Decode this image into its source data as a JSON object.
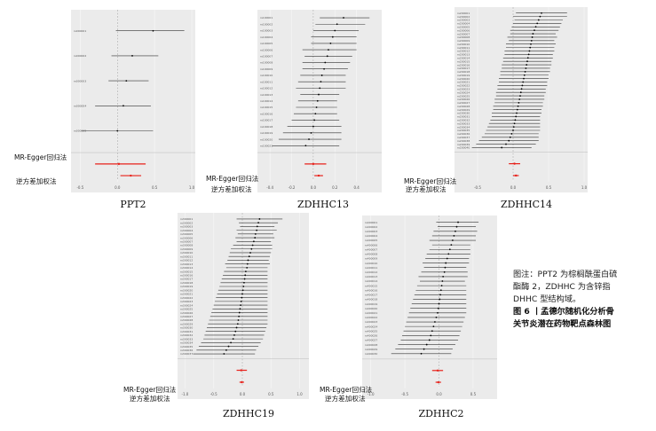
{
  "panels": [
    {
      "id": "ppt2",
      "title": "PPT2",
      "egger_label": "MR-Egger回归法",
      "ivw_label": "逆方差加权法",
      "snps": [
        "rs000001",
        "rs000002",
        "rs000003",
        "rs000004",
        "rs000005"
      ],
      "estimates": [
        0.48,
        0.2,
        0.12,
        0.08,
        0.0
      ],
      "ci_low": [
        -0.02,
        -0.08,
        -0.12,
        -0.3,
        -0.48
      ],
      "ci_high": [
        0.9,
        0.55,
        0.42,
        0.45,
        0.48
      ],
      "egger": {
        "est": 0.02,
        "lo": -0.3,
        "hi": 0.38
      },
      "ivw": {
        "est": 0.18,
        "lo": 0.04,
        "hi": 0.32
      },
      "x_ticks": [
        "-0.5",
        "0.0",
        "0.5",
        "1.0"
      ],
      "xlim": [
        -0.6,
        1.0
      ]
    },
    {
      "id": "zdhhc13",
      "title": "ZDHHC13",
      "egger_label": "MR-Egger回归法",
      "ivw_label": "逆方差加权法",
      "snps": [
        "rs100001",
        "rs100002",
        "rs100003",
        "rs100004",
        "rs100005",
        "rs100006",
        "rs100007",
        "rs100008",
        "rs100009",
        "rs100010",
        "rs100011",
        "rs100012",
        "rs100013",
        "rs100014",
        "rs100015",
        "rs100016",
        "rs100017",
        "rs100018",
        "rs100019",
        "rs100020",
        "rs100021"
      ],
      "estimates": [
        0.28,
        0.22,
        0.2,
        0.18,
        0.16,
        0.14,
        0.13,
        0.11,
        0.1,
        0.08,
        0.07,
        0.06,
        0.05,
        0.04,
        0.03,
        0.02,
        0.01,
        0.0,
        -0.02,
        -0.04,
        -0.07
      ],
      "ci_low": [
        0.06,
        0.02,
        0.0,
        -0.02,
        -0.02,
        -0.1,
        -0.08,
        -0.1,
        -0.1,
        -0.12,
        -0.14,
        -0.16,
        -0.12,
        -0.14,
        -0.16,
        -0.18,
        -0.2,
        -0.24,
        -0.28,
        -0.32,
        -0.38
      ],
      "ci_high": [
        0.52,
        0.48,
        0.42,
        0.4,
        0.4,
        0.4,
        0.36,
        0.34,
        0.32,
        0.3,
        0.3,
        0.3,
        0.24,
        0.22,
        0.22,
        0.22,
        0.24,
        0.26,
        0.26,
        0.26,
        0.24
      ],
      "egger": {
        "est": 0.0,
        "lo": -0.08,
        "hi": 0.12
      },
      "ivw": {
        "est": 0.05,
        "lo": 0.01,
        "hi": 0.09
      },
      "x_ticks": [
        "-0.4",
        "-0.2",
        "0.0",
        "0.2",
        "0.4"
      ],
      "xlim": [
        -0.5,
        0.6
      ]
    },
    {
      "id": "zdhhc14",
      "title": "ZDHHC14",
      "egger_label": "MR-Egger回归法",
      "ivw_label": "逆方差加权法",
      "snps": [
        "rs200001",
        "rs200002",
        "rs200003",
        "rs200004",
        "rs200005",
        "rs200006",
        "rs200007",
        "rs200008",
        "rs200009",
        "rs200010",
        "rs200011",
        "rs200012",
        "rs200013",
        "rs200014",
        "rs200015",
        "rs200016",
        "rs200017",
        "rs200018",
        "rs200019",
        "rs200020",
        "rs200021",
        "rs200022",
        "rs200023",
        "rs200024",
        "rs200025",
        "rs200026",
        "rs200027",
        "rs200028",
        "rs200029",
        "rs200030",
        "rs200031",
        "rs200032",
        "rs200033",
        "rs200034",
        "rs200035",
        "rs200036",
        "rs200037",
        "rs200038",
        "rs200039",
        "rs200040"
      ],
      "estimates": [
        0.4,
        0.38,
        0.36,
        0.34,
        0.32,
        0.3,
        0.28,
        0.27,
        0.26,
        0.25,
        0.24,
        0.23,
        0.22,
        0.21,
        0.2,
        0.19,
        0.18,
        0.17,
        0.16,
        0.15,
        0.14,
        0.13,
        0.12,
        0.11,
        0.1,
        0.09,
        0.08,
        0.07,
        0.06,
        0.05,
        0.04,
        0.03,
        0.02,
        0.01,
        0.0,
        -0.02,
        -0.04,
        -0.06,
        -0.1,
        -0.16
      ],
      "ci_low": [
        0.04,
        0.0,
        0.02,
        0.0,
        -0.02,
        -0.04,
        -0.04,
        -0.08,
        -0.06,
        -0.1,
        -0.1,
        -0.12,
        -0.12,
        -0.14,
        -0.14,
        -0.16,
        -0.16,
        -0.18,
        -0.18,
        -0.2,
        -0.2,
        -0.22,
        -0.22,
        -0.24,
        -0.24,
        -0.26,
        -0.26,
        -0.28,
        -0.28,
        -0.3,
        -0.3,
        -0.32,
        -0.34,
        -0.36,
        -0.38,
        -0.4,
        -0.44,
        -0.48,
        -0.52,
        -0.58
      ],
      "ci_high": [
        0.76,
        0.76,
        0.7,
        0.68,
        0.66,
        0.64,
        0.6,
        0.62,
        0.58,
        0.6,
        0.58,
        0.58,
        0.56,
        0.56,
        0.54,
        0.54,
        0.52,
        0.52,
        0.5,
        0.5,
        0.48,
        0.48,
        0.46,
        0.46,
        0.44,
        0.44,
        0.42,
        0.42,
        0.4,
        0.4,
        0.38,
        0.38,
        0.38,
        0.38,
        0.38,
        0.36,
        0.36,
        0.36,
        0.32,
        0.26
      ],
      "egger": {
        "est": 0.02,
        "lo": -0.06,
        "hi": 0.1
      },
      "ivw": {
        "est": 0.04,
        "lo": 0.0,
        "hi": 0.08
      },
      "x_ticks": [
        "-0.5",
        "0.0",
        "0.5",
        "1.0"
      ],
      "xlim": [
        -0.8,
        1.0
      ]
    },
    {
      "id": "zdhhc19",
      "title": "ZDHHC19",
      "egger_label": "MR-Egger回归法",
      "ivw_label": "逆方差加权法",
      "snps": [
        "rs300001",
        "rs300002",
        "rs300003",
        "rs300004",
        "rs300005",
        "rs300006",
        "rs300007",
        "rs300008",
        "rs300009",
        "rs300010",
        "rs300011",
        "rs300012",
        "rs300013",
        "rs300014",
        "rs300015",
        "rs300016",
        "rs300017",
        "rs300018",
        "rs300019",
        "rs300020",
        "rs300021",
        "rs300022",
        "rs300023",
        "rs300024",
        "rs300025",
        "rs300026",
        "rs300027",
        "rs300028",
        "rs300029",
        "rs300030",
        "rs300031",
        "rs300032",
        "rs300033",
        "rs300034",
        "rs300035",
        "rs300036",
        "rs300037"
      ],
      "estimates": [
        0.3,
        0.28,
        0.26,
        0.25,
        0.23,
        0.22,
        0.2,
        0.18,
        0.16,
        0.14,
        0.12,
        0.1,
        0.09,
        0.08,
        0.06,
        0.05,
        0.04,
        0.03,
        0.02,
        0.01,
        0.0,
        -0.01,
        -0.02,
        -0.03,
        -0.04,
        -0.05,
        -0.06,
        -0.07,
        -0.08,
        -0.1,
        -0.12,
        -0.14,
        -0.16,
        -0.2,
        -0.24,
        -0.28,
        -0.32
      ],
      "ci_low": [
        -0.1,
        -0.06,
        -0.04,
        -0.1,
        -0.08,
        -0.12,
        -0.1,
        -0.16,
        -0.2,
        -0.22,
        -0.24,
        -0.26,
        -0.3,
        -0.28,
        -0.32,
        -0.34,
        -0.36,
        -0.38,
        -0.4,
        -0.42,
        -0.44,
        -0.46,
        -0.48,
        -0.5,
        -0.52,
        -0.54,
        -0.56,
        -0.58,
        -0.6,
        -0.62,
        -0.64,
        -0.66,
        -0.68,
        -0.72,
        -0.76,
        -0.8,
        -0.86
      ],
      "ci_high": [
        0.7,
        0.62,
        0.56,
        0.6,
        0.54,
        0.56,
        0.5,
        0.52,
        0.52,
        0.5,
        0.48,
        0.46,
        0.48,
        0.44,
        0.44,
        0.44,
        0.44,
        0.44,
        0.44,
        0.44,
        0.44,
        0.44,
        0.44,
        0.44,
        0.44,
        0.44,
        0.44,
        0.44,
        0.44,
        0.42,
        0.4,
        0.38,
        0.36,
        0.32,
        0.28,
        0.24,
        0.22
      ],
      "egger": {
        "est": -0.02,
        "lo": -0.1,
        "hi": 0.08
      },
      "ivw": {
        "est": -0.01,
        "lo": -0.05,
        "hi": 0.03
      },
      "x_ticks": [
        "-1.0",
        "-0.5",
        "0.0",
        "0.5",
        "1.0"
      ],
      "xlim": [
        -1.1,
        1.1
      ]
    },
    {
      "id": "zdhhc2",
      "title": "ZDHHC2",
      "egger_label": "MR-Egger回归法",
      "ivw_label": "逆方差加权法",
      "snps": [
        "rs400001",
        "rs400002",
        "rs400003",
        "rs400004",
        "rs400005",
        "rs400006",
        "rs400007",
        "rs400008",
        "rs400009",
        "rs400010",
        "rs400011",
        "rs400012",
        "rs400013",
        "rs400014",
        "rs400015",
        "rs400016",
        "rs400017",
        "rs400018",
        "rs400019",
        "rs400020",
        "rs400021",
        "rs400022",
        "rs400023",
        "rs400024",
        "rs400025",
        "rs400026",
        "rs400027",
        "rs400028",
        "rs400029",
        "rs400030"
      ],
      "estimates": [
        0.28,
        0.26,
        0.24,
        0.22,
        0.2,
        0.18,
        0.16,
        0.14,
        0.12,
        0.1,
        0.09,
        0.08,
        0.06,
        0.05,
        0.04,
        0.03,
        0.02,
        0.01,
        0.0,
        -0.01,
        -0.02,
        -0.04,
        -0.06,
        -0.08,
        -0.1,
        -0.12,
        -0.14,
        -0.18,
        -0.22,
        -0.26
      ],
      "ci_low": [
        -0.04,
        -0.02,
        -0.08,
        -0.1,
        -0.14,
        -0.1,
        -0.14,
        -0.18,
        -0.2,
        -0.24,
        -0.22,
        -0.26,
        -0.3,
        -0.28,
        -0.32,
        -0.34,
        -0.36,
        -0.38,
        -0.4,
        -0.42,
        -0.44,
        -0.46,
        -0.48,
        -0.5,
        -0.52,
        -0.54,
        -0.56,
        -0.6,
        -0.64,
        -0.7
      ],
      "ci_high": [
        0.58,
        0.54,
        0.56,
        0.54,
        0.54,
        0.46,
        0.46,
        0.46,
        0.44,
        0.44,
        0.4,
        0.42,
        0.42,
        0.38,
        0.4,
        0.4,
        0.4,
        0.4,
        0.4,
        0.4,
        0.4,
        0.38,
        0.36,
        0.34,
        0.32,
        0.3,
        0.28,
        0.24,
        0.2,
        0.18
      ],
      "egger": {
        "est": -0.02,
        "lo": -0.1,
        "hi": 0.06
      },
      "ivw": {
        "est": -0.01,
        "lo": -0.05,
        "hi": 0.03
      },
      "x_ticks": [
        "-1.0",
        "-0.5",
        "0.0",
        "0.5"
      ],
      "xlim": [
        -1.1,
        0.8
      ]
    }
  ],
  "caption": {
    "note": "图注：PPT2 为棕榈酰蛋白硫酯酶 2，ZDHHC 为含锌指 DHHC 型结构域。",
    "figure": "图 6 丨孟德尔随机化分析骨关节炎潜在药物靶点森林图"
  },
  "colors": {
    "panel_bg": "#ebebeb",
    "ci_line": "#333333",
    "point": "#000000",
    "summary": "#e8211a",
    "zero_line": "#9a9a9a"
  }
}
